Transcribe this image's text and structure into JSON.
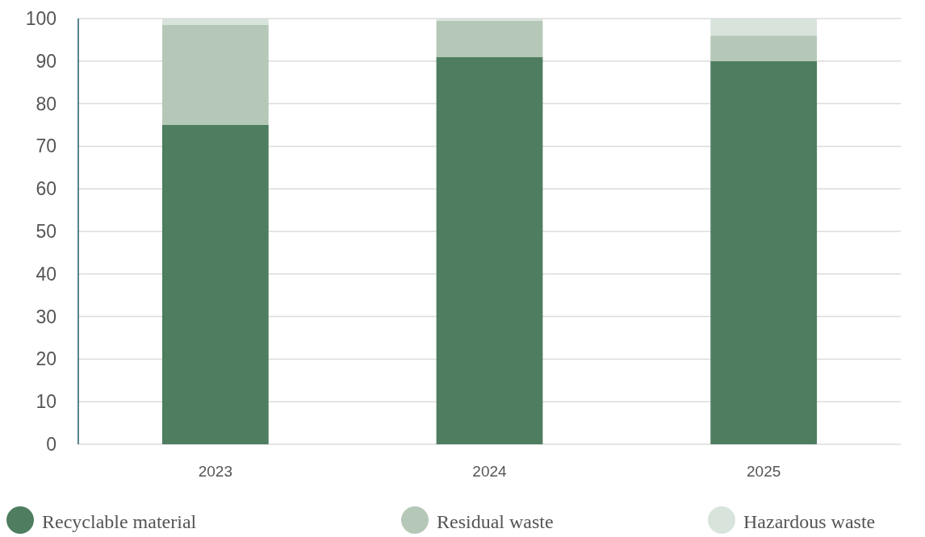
{
  "chart_data": {
    "type": "bar",
    "stacked": true,
    "categories": [
      "2023",
      "2024",
      "2025"
    ],
    "series": [
      {
        "name": "Recyclable material",
        "color": "#4e7d5f",
        "values": [
          75,
          91,
          90
        ]
      },
      {
        "name": "Residual waste",
        "color": "#b5c8b8",
        "values": [
          23.5,
          8.5,
          6
        ]
      },
      {
        "name": "Hazardous waste",
        "color": "#d8e3db",
        "values": [
          1.5,
          0.5,
          4
        ]
      }
    ],
    "ylim": [
      0,
      100
    ],
    "yticks": [
      0,
      10,
      20,
      30,
      40,
      50,
      60,
      70,
      80,
      90,
      100
    ],
    "grid": "y",
    "legend": "bottom"
  }
}
